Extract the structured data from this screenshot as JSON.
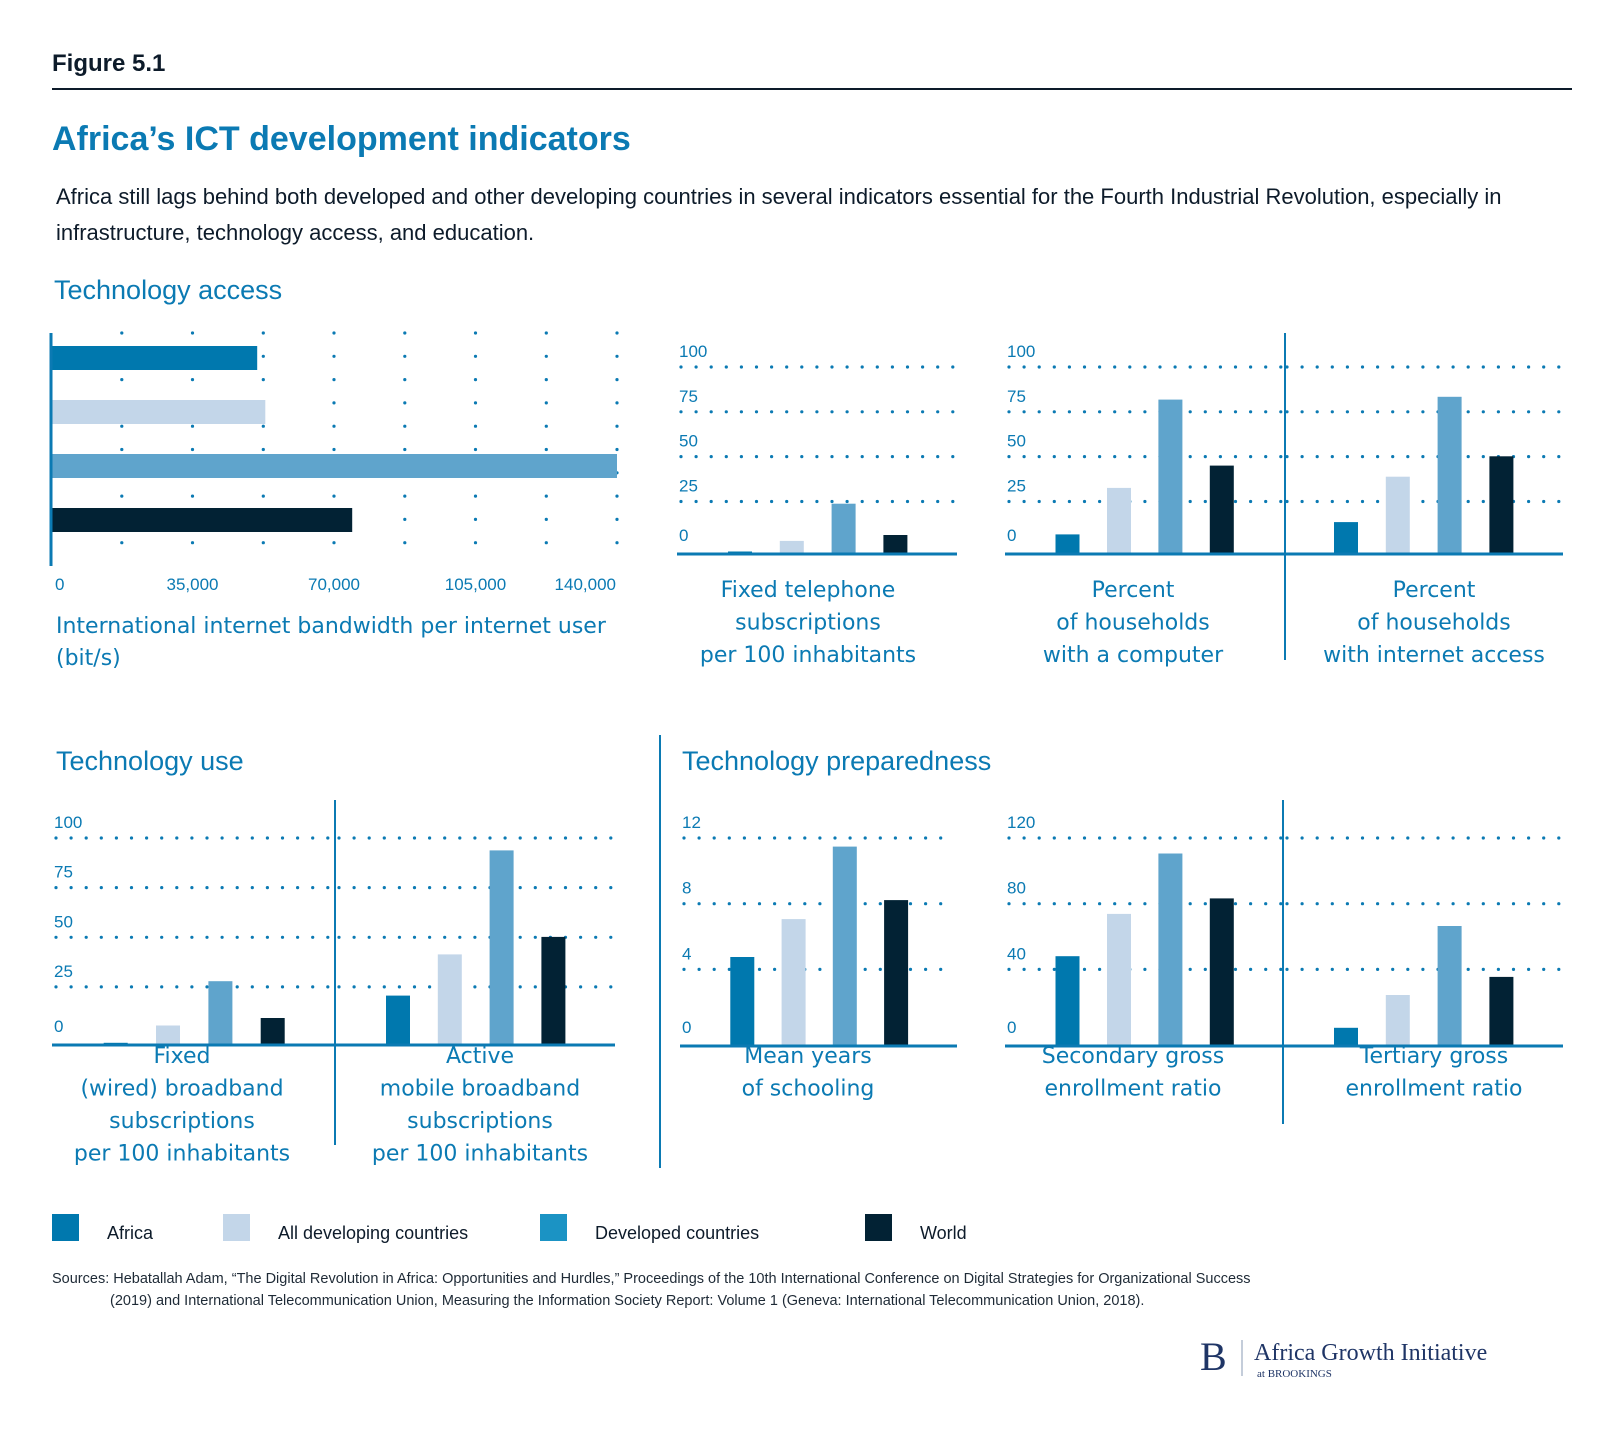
{
  "figure_label": "Figure 5.1",
  "title": "Africa’s ICT development indicators",
  "subtitle_lines": [
    "Africa still lags behind both developed and other developing countries in several indicators essential for the Fourth Industrial Revolution, especially in",
    "infrastructure, technology access, and education."
  ],
  "sections": {
    "access": "Technology access",
    "use": "Technology use",
    "preparedness": "Technology preparedness"
  },
  "colors": {
    "Africa": "#0078ae",
    "All developing countries": "#c3d6e9",
    "Developed countries": "#5fa4cc",
    "World": "#022234",
    "accent": "#0b7ab3"
  },
  "legend": [
    {
      "label": "Africa",
      "color": "#0078ae"
    },
    {
      "label": "All developing countries",
      "color": "#c3d6e9"
    },
    {
      "label": "Developed countries",
      "color": "#1b93c4"
    },
    {
      "label": "World",
      "color": "#022234"
    }
  ],
  "chart_data": [
    {
      "id": "bandwidth",
      "type": "bar",
      "orientation": "horizontal",
      "section": "Technology access",
      "xlabel_lines": [
        "International internet bandwidth per internet user",
        "(bit/s)"
      ],
      "categories": [
        "Africa",
        "All developing countries",
        "Developed countries",
        "World"
      ],
      "values": [
        51000,
        53000,
        140000,
        74500
      ],
      "xlim": [
        0,
        140000
      ],
      "xticks": [
        0,
        35000,
        70000,
        105000,
        140000
      ],
      "xtick_labels": [
        "0",
        "35,000",
        "70,000",
        "105,000",
        "140,000"
      ],
      "grid_step": 17500,
      "grid": true
    },
    {
      "id": "fixed-telephone",
      "type": "bar",
      "section": "Technology access",
      "label_lines": [
        "Fixed telephone",
        "subscriptions",
        "per 100 inhabitants"
      ],
      "categories": [
        "Africa",
        "All developing countries",
        "Developed countries",
        "World"
      ],
      "values": [
        0.8,
        6.5,
        26.5,
        9.7
      ],
      "ylim": [
        0,
        100
      ],
      "yticks": [
        0,
        25,
        50,
        75,
        100
      ],
      "grid": true
    },
    {
      "id": "households-computer",
      "type": "bar",
      "section": "Technology access",
      "label_lines": [
        "Percent",
        "of households",
        "with a computer"
      ],
      "categories": [
        "Africa",
        "All developing countries",
        "Developed countries",
        "World"
      ],
      "values": [
        10,
        35,
        82.5,
        47
      ],
      "ylim": [
        0,
        100
      ],
      "yticks": [
        0,
        25,
        50,
        75,
        100
      ],
      "grid": true
    },
    {
      "id": "households-internet",
      "type": "bar",
      "section": "Technology access",
      "label_lines": [
        "Percent",
        "of households",
        "with internet access"
      ],
      "categories": [
        "Africa",
        "All developing countries",
        "Developed countries",
        "World"
      ],
      "values": [
        16.6,
        41,
        84,
        52
      ],
      "ylim": [
        0,
        100
      ],
      "yticks": [],
      "grid": true
    },
    {
      "id": "fixed-broadband",
      "type": "bar",
      "section": "Technology use",
      "label_lines": [
        "Fixed",
        "(wired) broadband",
        "subscriptions",
        "per 100 inhabitants"
      ],
      "categories": [
        "Africa",
        "All developing countries",
        "Developed countries",
        "World"
      ],
      "values": [
        0.6,
        9,
        30.5,
        12.6
      ],
      "ylim": [
        0,
        100
      ],
      "yticks": [
        0,
        25,
        50,
        75,
        100
      ],
      "grid": true
    },
    {
      "id": "mobile-broadband",
      "type": "bar",
      "section": "Technology use",
      "label_lines": [
        "Active",
        "mobile broadband",
        "subscriptions",
        "per 100 inhabitants"
      ],
      "categories": [
        "Africa",
        "All developing countries",
        "Developed countries",
        "World"
      ],
      "values": [
        23.5,
        43.5,
        94,
        52
      ],
      "ylim": [
        0,
        100
      ],
      "yticks": [],
      "grid": true
    },
    {
      "id": "mean-schooling",
      "type": "bar",
      "section": "Technology preparedness",
      "label_lines": [
        "Mean years",
        "of schooling"
      ],
      "categories": [
        "Africa",
        "All developing countries",
        "Developed countries",
        "World"
      ],
      "values": [
        5.1,
        7.3,
        11.5,
        8.4
      ],
      "ylim": [
        0,
        12
      ],
      "yticks": [
        0,
        4,
        8,
        12
      ],
      "grid": true
    },
    {
      "id": "secondary-enrollment",
      "type": "bar",
      "section": "Technology preparedness",
      "label_lines": [
        "Secondary gross",
        "enrollment ratio"
      ],
      "categories": [
        "Africa",
        "All developing countries",
        "Developed countries",
        "World"
      ],
      "values": [
        51.5,
        76,
        111,
        85
      ],
      "ylim": [
        0,
        120
      ],
      "yticks": [
        0,
        40,
        80,
        120
      ],
      "grid": true
    },
    {
      "id": "tertiary-enrollment",
      "type": "bar",
      "section": "Technology preparedness",
      "label_lines": [
        "Tertiary gross",
        "enrollment ratio"
      ],
      "categories": [
        "Africa",
        "All developing countries",
        "Developed countries",
        "World"
      ],
      "values": [
        10,
        29,
        69,
        39.5
      ],
      "ylim": [
        0,
        120
      ],
      "yticks": [],
      "grid": true
    }
  ],
  "sources_lines": [
    "Sources: Hebatallah Adam, “The Digital Revolution in Africa: Opportunities and Hurdles,” Proceedings of the 10th International Conference on Digital Strategies for Organizational Success",
    "(2019) and International Telecommunication Union, Measuring the Information Society Report: Volume 1 (Geneva: International Telecommunication Union, 2018)."
  ],
  "logo": {
    "letter": "B",
    "name": "Africa Growth Initiative",
    "sub": "at BROOKINGS"
  }
}
